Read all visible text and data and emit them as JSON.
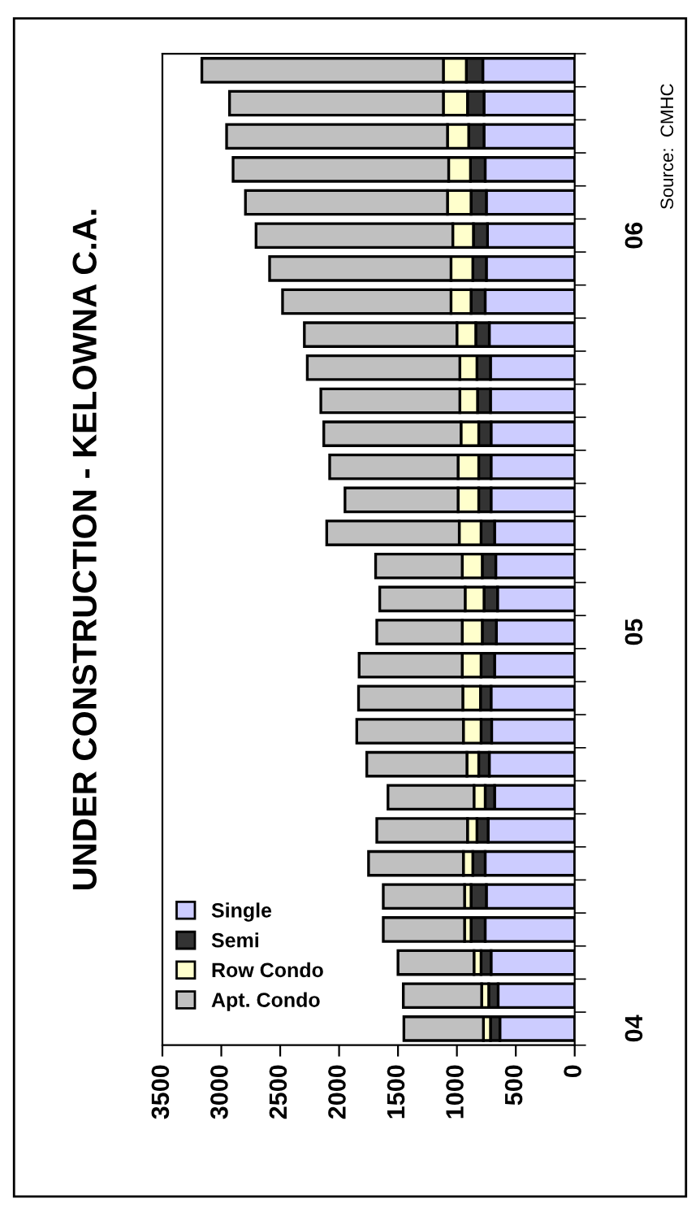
{
  "chart_data": {
    "type": "bar",
    "orientation": "horizontal",
    "stacked": true,
    "title": "UNDER CONSTRUCTION - KELOWNA C.A.",
    "annotations": [
      "Source:  CMHC"
    ],
    "categories": [
      null,
      null,
      null,
      null,
      null,
      "06",
      null,
      null,
      null,
      null,
      null,
      null,
      null,
      null,
      null,
      null,
      null,
      "05",
      null,
      null,
      null,
      null,
      null,
      null,
      null,
      null,
      null,
      null,
      null,
      "04"
    ],
    "series": [
      {
        "name": "Single",
        "color": "#ccccff",
        "values": [
          780,
          770,
          770,
          760,
          750,
          740,
          750,
          760,
          725,
          715,
          715,
          710,
          710,
          710,
          680,
          670,
          655,
          665,
          680,
          710,
          705,
          725,
          680,
          735,
          760,
          750,
          760,
          710,
          650,
          635
        ]
      },
      {
        "name": "Semi",
        "color": "#333333",
        "values": [
          140,
          140,
          130,
          125,
          130,
          120,
          115,
          120,
          115,
          115,
          110,
          105,
          105,
          105,
          115,
          115,
          115,
          120,
          115,
          90,
          90,
          90,
          80,
          95,
          105,
          130,
          120,
          85,
          80,
          80
        ]
      },
      {
        "name": "Row Condo",
        "color": "#ffffcc",
        "values": [
          195,
          205,
          180,
          185,
          200,
          175,
          185,
          170,
          160,
          145,
          150,
          150,
          175,
          175,
          185,
          170,
          160,
          170,
          160,
          150,
          150,
          100,
          95,
          80,
          80,
          55,
          55,
          60,
          60,
          60
        ]
      },
      {
        "name": "Apt. Condo",
        "color": "#c0c0c0",
        "values": [
          2050,
          1815,
          1875,
          1830,
          1715,
          1670,
          1540,
          1430,
          1295,
          1295,
          1180,
          1165,
          1090,
          960,
          1125,
          735,
          725,
          725,
          875,
          885,
          905,
          850,
          730,
          770,
          805,
          690,
          690,
          645,
          665,
          675
        ]
      }
    ],
    "xlim": [
      3500,
      0
    ],
    "xticks": [
      3500,
      3000,
      2500,
      2000,
      1500,
      1000,
      500,
      0
    ],
    "grid": false,
    "legend": "bottom left"
  }
}
